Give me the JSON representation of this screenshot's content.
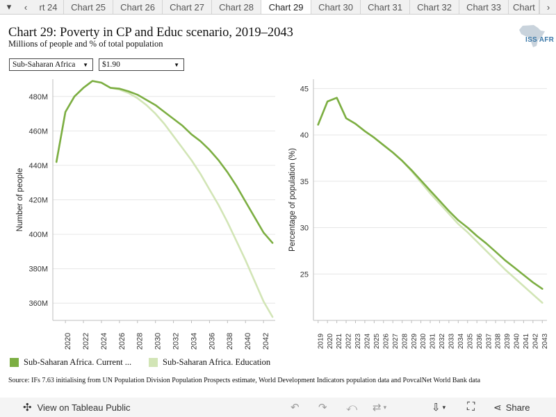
{
  "tabs": {
    "items": [
      "rt 24",
      "Chart 25",
      "Chart 26",
      "Chart 27",
      "Chart 28",
      "Chart 29",
      "Chart 30",
      "Chart 31",
      "Chart 32",
      "Chart 33",
      "Chart"
    ],
    "active_index": 5
  },
  "header": {
    "title": "Chart 29: Poverty in CP and Educ scenario, 2019–2043",
    "subtitle": "Millions of people and % of total population",
    "logo_text": "ISS AFR"
  },
  "filters": {
    "region": "Sub-Saharan Africa",
    "threshold": "$1.90"
  },
  "legend": {
    "items": [
      {
        "label": "Sub-Saharan Africa. Current ...",
        "color": "#7cae42"
      },
      {
        "label": "Sub-Saharan Africa. Education",
        "color": "#d2e5b6"
      }
    ]
  },
  "source": "Source: IFs 7.63 initialising from UN Population Division Population Prospects estimate, World Development Indicators population data and PovcalNet World Bank data",
  "toolbar": {
    "view_label": "View on Tableau Public",
    "share_label": "Share"
  },
  "colors": {
    "current": "#7cae42",
    "education": "#d2e5b6"
  },
  "chart_data": [
    {
      "type": "line",
      "ylabel": "Number of people",
      "ylim": [
        350,
        490
      ],
      "yticks": [
        360,
        380,
        400,
        420,
        440,
        460,
        480
      ],
      "ytick_labels": [
        "360M",
        "380M",
        "400M",
        "420M",
        "440M",
        "460M",
        "480M"
      ],
      "xticks": [
        "2020",
        "2022",
        "2024",
        "2026",
        "2028",
        "2030",
        "2032",
        "2034",
        "2036",
        "2038",
        "2040",
        "2042"
      ],
      "x": [
        2019,
        2020,
        2021,
        2022,
        2023,
        2024,
        2025,
        2026,
        2027,
        2028,
        2029,
        2030,
        2031,
        2032,
        2033,
        2034,
        2035,
        2036,
        2037,
        2038,
        2039,
        2040,
        2041,
        2042,
        2043
      ],
      "series": [
        {
          "name": "Sub-Saharan Africa. Current ...",
          "values": [
            442,
            471,
            480,
            485,
            489,
            488,
            485,
            484.5,
            483,
            481,
            478,
            475,
            471,
            467,
            463,
            458,
            454,
            449,
            443,
            436,
            428,
            419,
            410,
            401,
            395
          ]
        },
        {
          "name": "Sub-Saharan Africa. Education",
          "values": [
            442,
            471,
            480,
            485,
            489,
            488,
            485,
            484,
            482,
            479,
            475,
            470,
            464,
            457,
            450,
            443,
            435,
            426,
            417,
            407,
            396,
            385,
            373,
            361,
            352
          ]
        }
      ]
    },
    {
      "type": "line",
      "ylabel": "Percentage of population (%)",
      "ylim": [
        20,
        46
      ],
      "yticks": [
        25,
        30,
        35,
        40,
        45
      ],
      "ytick_labels": [
        "25",
        "30",
        "35",
        "40",
        "45"
      ],
      "xticks": [
        "2019",
        "2020",
        "2021",
        "2022",
        "2023",
        "2024",
        "2025",
        "2026",
        "2027",
        "2028",
        "2029",
        "2030",
        "2031",
        "2032",
        "2033",
        "2034",
        "2035",
        "2036",
        "2037",
        "2038",
        "2039",
        "2040",
        "2041",
        "2042",
        "2043"
      ],
      "x": [
        2019,
        2020,
        2021,
        2022,
        2023,
        2024,
        2025,
        2026,
        2027,
        2028,
        2029,
        2030,
        2031,
        2032,
        2033,
        2034,
        2035,
        2036,
        2037,
        2038,
        2039,
        2040,
        2041,
        2042,
        2043
      ],
      "series": [
        {
          "name": "Sub-Saharan Africa. Current ...",
          "values": [
            41.1,
            43.6,
            44,
            41.8,
            41.2,
            40.4,
            39.7,
            38.9,
            38.1,
            37.2,
            36.2,
            35.1,
            34,
            32.9,
            31.8,
            30.8,
            30,
            29.1,
            28.3,
            27.4,
            26.5,
            25.7,
            24.9,
            24.1,
            23.4
          ]
        },
        {
          "name": "Sub-Saharan Africa. Education",
          "values": [
            41.1,
            43.6,
            44,
            41.8,
            41.2,
            40.4,
            39.7,
            38.9,
            38.1,
            37.2,
            36.1,
            34.9,
            33.7,
            32.6,
            31.5,
            30.4,
            29.5,
            28.5,
            27.5,
            26.5,
            25.5,
            24.6,
            23.7,
            22.8,
            21.9
          ]
        }
      ]
    }
  ]
}
